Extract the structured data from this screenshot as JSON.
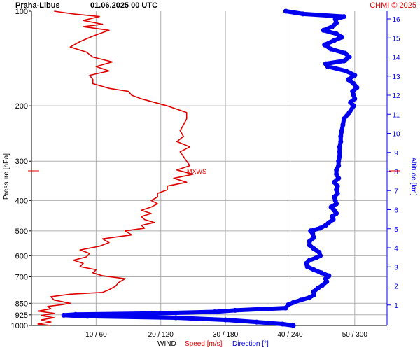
{
  "header": {
    "station": "Praha-Libus",
    "datetime": "01.06.2025 00 UTC",
    "credit": "CHMI © 2025"
  },
  "chart_data": {
    "type": "line",
    "y_axis_label": "Pressure [hPa]",
    "right_axis_label": "Altitude [km]",
    "x_axis_labels": {
      "title": "WIND",
      "speed": "Speed [m/s]",
      "direction": "Direction [°]"
    },
    "pressure_ticks": [
      100,
      200,
      300,
      400,
      500,
      600,
      700,
      850,
      925,
      1000
    ],
    "altitude_ticks": [
      1,
      2,
      3,
      4,
      5,
      6,
      7,
      8,
      9,
      10,
      11,
      12,
      13,
      14,
      15,
      16
    ],
    "x_ticks": [
      "10 / 60",
      "20 / 120",
      "30 / 180",
      "40 / 240",
      "50 / 300"
    ],
    "speed_range_ms": [
      0,
      55
    ],
    "direction_range_deg": [
      0,
      330
    ],
    "pressure_range_hpa": [
      100,
      1000
    ],
    "pressure_scale": "log",
    "grid": true,
    "max_wind": {
      "label": "MXWS",
      "pressure_hpa": 325,
      "speed_ms": 24.8
    },
    "series": [
      {
        "name": "Speed [m/s]",
        "color": "#e00000",
        "points": [
          [
            1000,
            3
          ],
          [
            990,
            1
          ],
          [
            975,
            3
          ],
          [
            960,
            1.5
          ],
          [
            945,
            3.5
          ],
          [
            930,
            1.5
          ],
          [
            915,
            3.5
          ],
          [
            900,
            1
          ],
          [
            885,
            3
          ],
          [
            870,
            2.5
          ],
          [
            860,
            4.5
          ],
          [
            850,
            6
          ],
          [
            830,
            3.5
          ],
          [
            810,
            3
          ],
          [
            795,
            6
          ],
          [
            785,
            11
          ],
          [
            770,
            12
          ],
          [
            750,
            13
          ],
          [
            730,
            13.5
          ],
          [
            710,
            14.5
          ],
          [
            695,
            11
          ],
          [
            680,
            9.5
          ],
          [
            665,
            10
          ],
          [
            650,
            7.5
          ],
          [
            635,
            8
          ],
          [
            620,
            6.5
          ],
          [
            605,
            8.5
          ],
          [
            590,
            9
          ],
          [
            575,
            7.5
          ],
          [
            560,
            10.5
          ],
          [
            545,
            12
          ],
          [
            530,
            11
          ],
          [
            515,
            15.5
          ],
          [
            500,
            14.5
          ],
          [
            490,
            17.5
          ],
          [
            480,
            17
          ],
          [
            470,
            19
          ],
          [
            460,
            17.5
          ],
          [
            450,
            17
          ],
          [
            440,
            18.5
          ],
          [
            430,
            17
          ],
          [
            420,
            18.5
          ],
          [
            410,
            19.5
          ],
          [
            400,
            18.5
          ],
          [
            390,
            19.5
          ],
          [
            380,
            19.5
          ],
          [
            370,
            21
          ],
          [
            360,
            21
          ],
          [
            350,
            24
          ],
          [
            340,
            22
          ],
          [
            330,
            25
          ],
          [
            320,
            22.5
          ],
          [
            310,
            24.5
          ],
          [
            300,
            24
          ],
          [
            290,
            23.5
          ],
          [
            280,
            23
          ],
          [
            270,
            24.5
          ],
          [
            260,
            22.5
          ],
          [
            250,
            23.5
          ],
          [
            240,
            23
          ],
          [
            230,
            23.5
          ],
          [
            220,
            24
          ],
          [
            210,
            24
          ],
          [
            200,
            21
          ],
          [
            195,
            19
          ],
          [
            190,
            17
          ],
          [
            185,
            15.5
          ],
          [
            180,
            15
          ],
          [
            176,
            12
          ],
          [
            170,
            9.5
          ],
          [
            165,
            9.5
          ],
          [
            160,
            9
          ],
          [
            155,
            12
          ],
          [
            150,
            10
          ],
          [
            145,
            12.5
          ],
          [
            140,
            9.5
          ],
          [
            135,
            8.5
          ],
          [
            130,
            6
          ],
          [
            125,
            7.5
          ],
          [
            120,
            9.5
          ],
          [
            115,
            12
          ],
          [
            112,
            8
          ],
          [
            110,
            11
          ],
          [
            107,
            8
          ],
          [
            104,
            10.5
          ],
          [
            102,
            6.5
          ],
          [
            100,
            3.5
          ]
        ]
      },
      {
        "name": "Direction [°]",
        "color": "#0000ee",
        "points": [
          [
            1000,
            243
          ],
          [
            990,
            233
          ],
          [
            975,
            209
          ],
          [
            960,
            180
          ],
          [
            945,
            134
          ],
          [
            935,
            52
          ],
          [
            928,
            30
          ],
          [
            922,
            41
          ],
          [
            915,
            116
          ],
          [
            905,
            170
          ],
          [
            895,
            189
          ],
          [
            880,
            236
          ],
          [
            860,
            238
          ],
          [
            845,
            243
          ],
          [
            830,
            250
          ],
          [
            815,
            258
          ],
          [
            800,
            262
          ],
          [
            780,
            262
          ],
          [
            760,
            266
          ],
          [
            745,
            270
          ],
          [
            725,
            274
          ],
          [
            710,
            273
          ],
          [
            695,
            276
          ],
          [
            680,
            269
          ],
          [
            665,
            262
          ],
          [
            650,
            256
          ],
          [
            635,
            255
          ],
          [
            620,
            258
          ],
          [
            610,
            264
          ],
          [
            600,
            268
          ],
          [
            585,
            267
          ],
          [
            570,
            262
          ],
          [
            555,
            258
          ],
          [
            540,
            258
          ],
          [
            525,
            262
          ],
          [
            510,
            261
          ],
          [
            500,
            259
          ],
          [
            490,
            268
          ],
          [
            480,
            273
          ],
          [
            470,
            276
          ],
          [
            460,
            280
          ],
          [
            450,
            279
          ],
          [
            440,
            283
          ],
          [
            430,
            281
          ],
          [
            420,
            278
          ],
          [
            410,
            283
          ],
          [
            400,
            282
          ],
          [
            390,
            281
          ],
          [
            380,
            284
          ],
          [
            370,
            283
          ],
          [
            360,
            284
          ],
          [
            350,
            281
          ],
          [
            340,
            285
          ],
          [
            330,
            283
          ],
          [
            320,
            283
          ],
          [
            310,
            285
          ],
          [
            300,
            285
          ],
          [
            290,
            286
          ],
          [
            280,
            286
          ],
          [
            270,
            286
          ],
          [
            260,
            287
          ],
          [
            250,
            287
          ],
          [
            240,
            288
          ],
          [
            230,
            289
          ],
          [
            220,
            290
          ],
          [
            210,
            295
          ],
          [
            200,
            299
          ],
          [
            195,
            296
          ],
          [
            190,
            300
          ],
          [
            185,
            299
          ],
          [
            180,
            298
          ],
          [
            175,
            302
          ],
          [
            170,
            299
          ],
          [
            165,
            294
          ],
          [
            160,
            300
          ],
          [
            155,
            292
          ],
          [
            150,
            275
          ],
          [
            147,
            273
          ],
          [
            144,
            290
          ],
          [
            140,
            295
          ],
          [
            136,
            291
          ],
          [
            132,
            278
          ],
          [
            128,
            272
          ],
          [
            124,
            281
          ],
          [
            121,
            288
          ],
          [
            118,
            283
          ],
          [
            115,
            271
          ],
          [
            112,
            279
          ],
          [
            109,
            283
          ],
          [
            106,
            282
          ],
          [
            104,
            290
          ],
          [
            102,
            252
          ],
          [
            100,
            236
          ]
        ]
      }
    ]
  }
}
